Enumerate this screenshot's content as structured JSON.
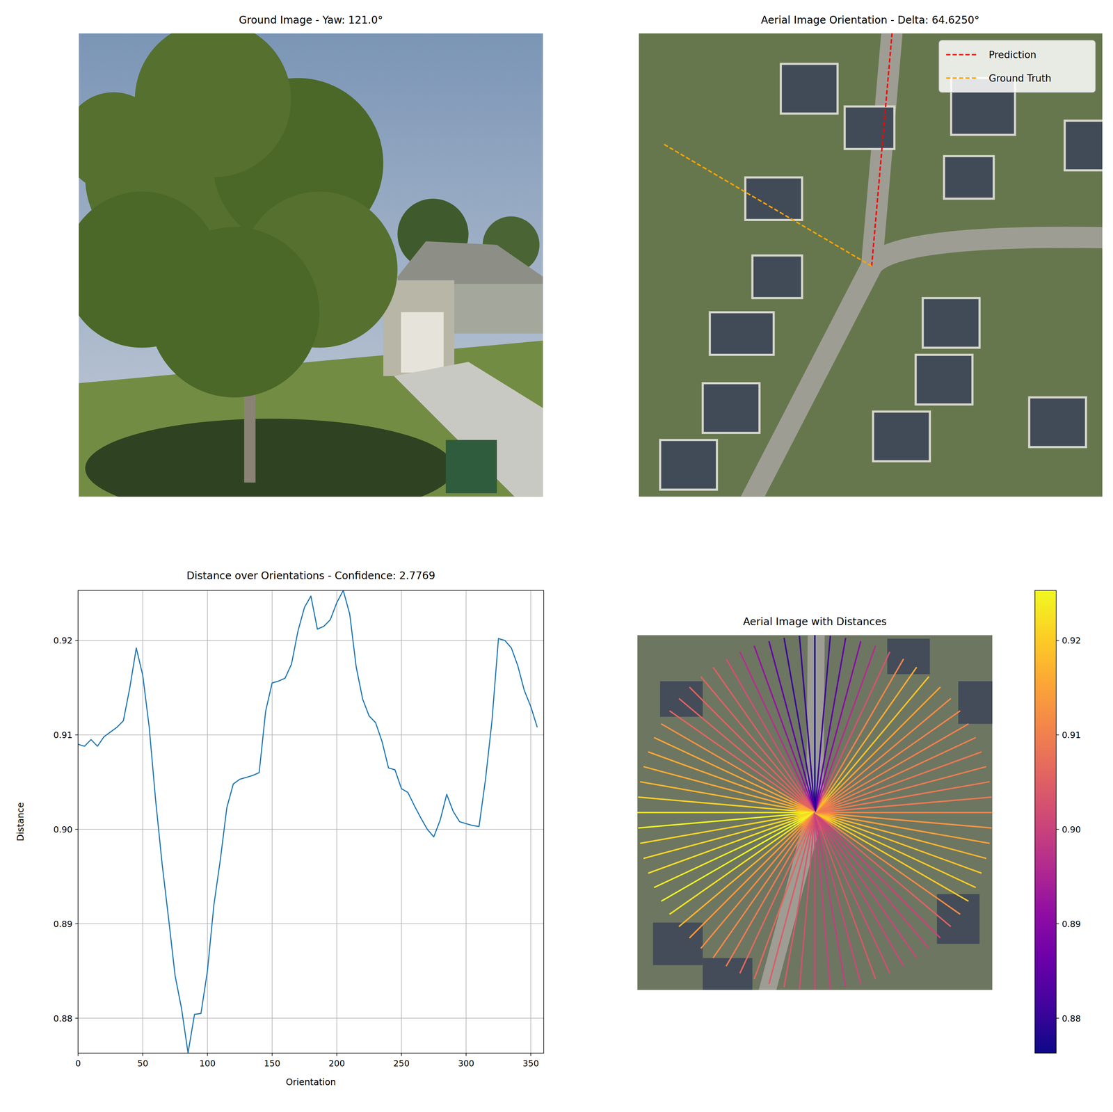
{
  "chart_data": [
    {
      "type": "image",
      "title": "Ground Image - Yaw: 121.0°"
    },
    {
      "type": "orientation",
      "title": "Aerial Image Orientation - Delta: 64.6250°",
      "legend": "upper right",
      "series": [
        {
          "name": "Prediction",
          "color": "#ff0000",
          "line_style": "dashed",
          "angle": 5.0
        },
        {
          "name": "Ground Truth",
          "color": "#ffa500",
          "line_style": "dashed",
          "angle": 300.4
        }
      ]
    },
    {
      "type": "line",
      "title": "Distance over Orientations - Confidence: 2.7769",
      "x_label": "Orientation",
      "y_label": "Distance",
      "color": "#1f77b4",
      "grid": true,
      "x": [
        0,
        5,
        10,
        15,
        20,
        25,
        30,
        35,
        40,
        45,
        50,
        55,
        60,
        65,
        70,
        75,
        80,
        85,
        90,
        95,
        100,
        105,
        110,
        115,
        120,
        125,
        130,
        135,
        140,
        145,
        150,
        155,
        160,
        165,
        170,
        175,
        180,
        185,
        190,
        195,
        200,
        205,
        210,
        215,
        220,
        225,
        230,
        235,
        240,
        245,
        250,
        255,
        260,
        265,
        270,
        275,
        280,
        285,
        290,
        295,
        300,
        305,
        310,
        315,
        320,
        325,
        330,
        335,
        340,
        345,
        350,
        355
      ],
      "values": [
        0.909,
        0.9088,
        0.9095,
        0.9088,
        0.9098,
        0.9103,
        0.9108,
        0.9115,
        0.915,
        0.9192,
        0.9163,
        0.9108,
        0.903,
        0.8963,
        0.8905,
        0.8845,
        0.881,
        0.8763,
        0.8804,
        0.8805,
        0.885,
        0.892,
        0.8968,
        0.9023,
        0.9048,
        0.9053,
        0.9055,
        0.9057,
        0.906,
        0.9125,
        0.9155,
        0.9157,
        0.916,
        0.9175,
        0.921,
        0.9235,
        0.9247,
        0.9212,
        0.9215,
        0.9222,
        0.924,
        0.9253,
        0.9228,
        0.9172,
        0.9138,
        0.912,
        0.9113,
        0.9093,
        0.9065,
        0.9063,
        0.9043,
        0.9039,
        0.9025,
        0.9012,
        0.9,
        0.8992,
        0.901,
        0.9037,
        0.9019,
        0.9008,
        0.9006,
        0.9004,
        0.9003,
        0.9053,
        0.9115,
        0.9202,
        0.92,
        0.9192,
        0.9173,
        0.9147,
        0.913,
        0.9108
      ],
      "xlim": [
        0,
        360
      ],
      "ylim": [
        0.8763,
        0.9253
      ],
      "xticks": [
        0,
        50,
        100,
        150,
        200,
        250,
        300,
        350
      ],
      "yticks": [
        0.88,
        0.89,
        {
          "value": 0.9,
          "label": "0.90"
        },
        0.91,
        0.92
      ]
    },
    {
      "type": "radial",
      "title": "Aerial Image with Distances",
      "colorbar": {
        "range": [
          0.8763,
          0.9253
        ],
        "ticks": [
          0.88,
          0.89,
          {
            "value": 0.9,
            "label": "0.90"
          },
          0.91,
          0.92
        ]
      }
    }
  ]
}
